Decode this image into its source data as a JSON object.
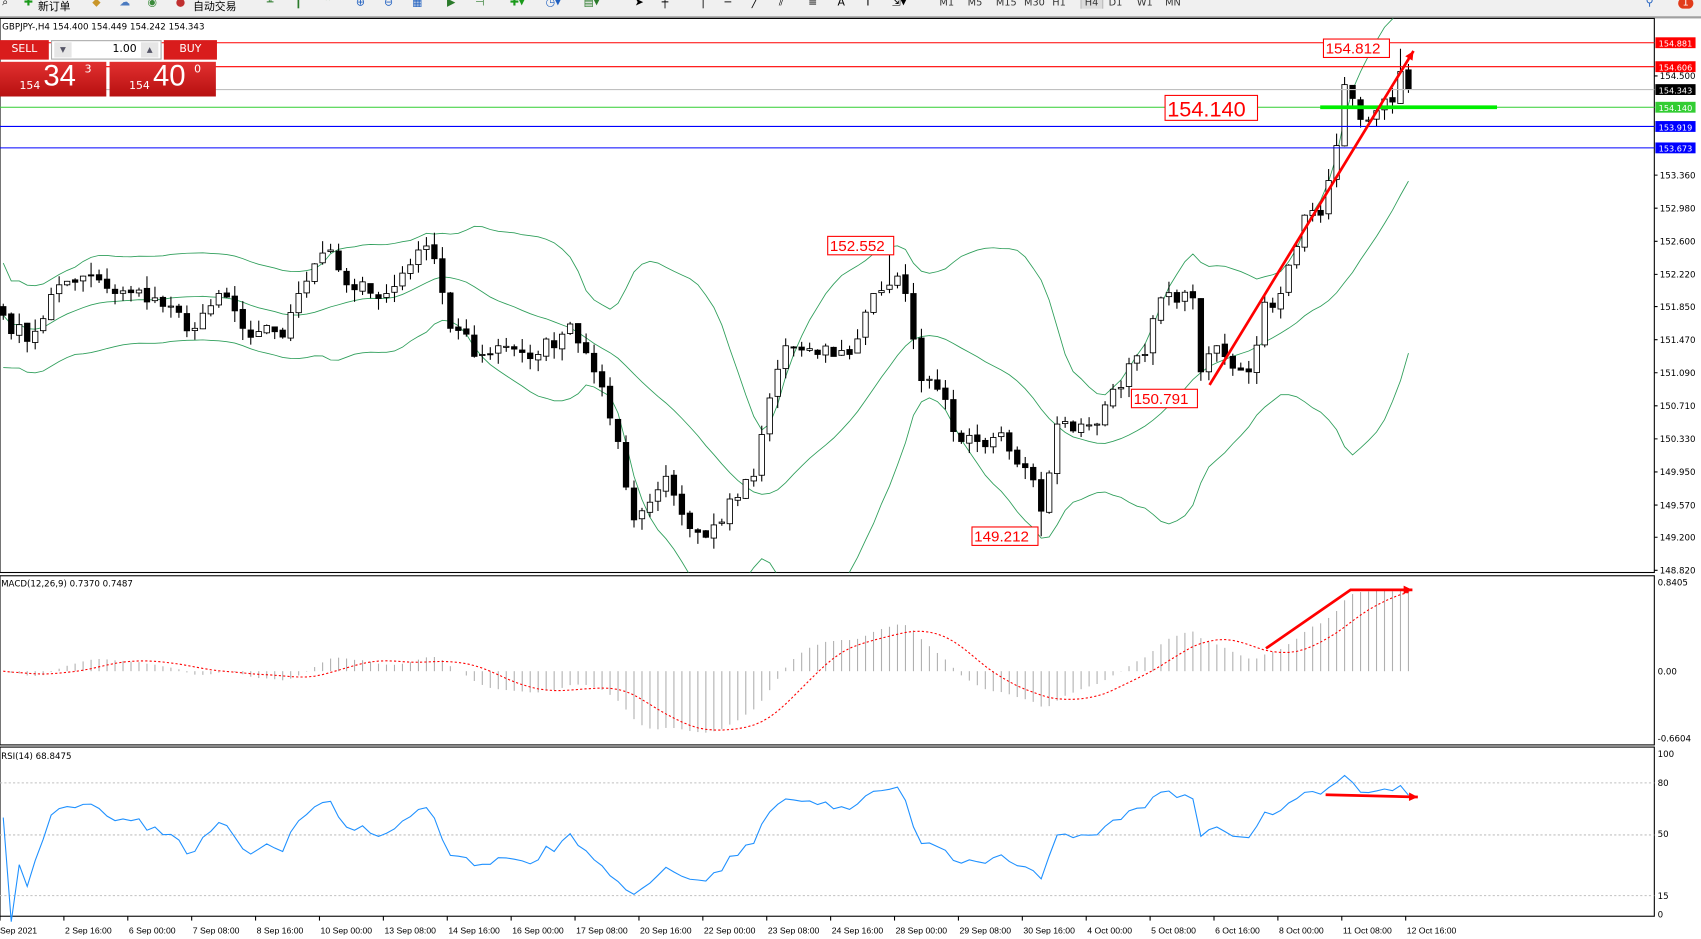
{
  "toolbar": {
    "new_order": "新订单",
    "auto_trading": "自动交易",
    "timeframes": [
      "M1",
      "M5",
      "M15",
      "M30",
      "H1",
      "H4",
      "D1",
      "W1",
      "MN"
    ],
    "active_timeframe": "H4",
    "notification_count": "1"
  },
  "chart_header": "GBPJPY-,H4  154.400 154.449 154.242 154.343",
  "trade_panel": {
    "sell_label": "SELL",
    "buy_label": "BUY",
    "lot": "1.00",
    "sell_small": "154",
    "sell_big": "34",
    "sell_pip": "3",
    "buy_small": "154",
    "buy_big": "40",
    "buy_pip": "0",
    "color": "#d91c1c"
  },
  "chart_data": {
    "type": "candlestick",
    "symbol": "GBPJPY-",
    "timeframe": "H4",
    "price_axis_ticks": [
      "154.500",
      "153.360",
      "152.980",
      "152.600",
      "152.220",
      "151.850",
      "151.470",
      "151.090",
      "150.710",
      "150.330",
      "149.950",
      "149.570",
      "149.200",
      "148.820"
    ],
    "price_range": [
      148.78,
      154.95
    ],
    "close_path_by_bar": [
      [
        0,
        151.75
      ],
      [
        3,
        151.45
      ],
      [
        7,
        152.1
      ],
      [
        10,
        152.2
      ],
      [
        14,
        152.0
      ],
      [
        19,
        151.95
      ],
      [
        24,
        151.6
      ],
      [
        27,
        152.0
      ],
      [
        30,
        151.6
      ],
      [
        35,
        151.5
      ],
      [
        37,
        152.0
      ],
      [
        41,
        152.5
      ],
      [
        43,
        152.1
      ],
      [
        48,
        152.0
      ],
      [
        52,
        152.5
      ],
      [
        54,
        152.4
      ],
      [
        56,
        151.6
      ],
      [
        60,
        151.3
      ],
      [
        62,
        151.4
      ],
      [
        67,
        151.3
      ],
      [
        71,
        151.65
      ],
      [
        74,
        151.1
      ],
      [
        77,
        150.3
      ],
      [
        79,
        149.4
      ],
      [
        83,
        149.9
      ],
      [
        86,
        149.3
      ],
      [
        88,
        149.2
      ],
      [
        94,
        149.9
      ],
      [
        96,
        150.8
      ],
      [
        98,
        151.4
      ],
      [
        102,
        151.3
      ],
      [
        106,
        151.3
      ],
      [
        109,
        152.0
      ],
      [
        112,
        152.2
      ],
      [
        113,
        152.0
      ],
      [
        115,
        151.0
      ],
      [
        117,
        150.9
      ],
      [
        120,
        150.3
      ],
      [
        122,
        150.3
      ],
      [
        125,
        150.4
      ],
      [
        128,
        150.0
      ],
      [
        130,
        149.5
      ],
      [
        132,
        150.5
      ],
      [
        135,
        150.5
      ],
      [
        137,
        150.5
      ],
      [
        139,
        150.9
      ],
      [
        143,
        151.3
      ],
      [
        145,
        151.95
      ],
      [
        147,
        151.9
      ],
      [
        149,
        151.95
      ],
      [
        150,
        151.1
      ],
      [
        152,
        151.4
      ],
      [
        156,
        151.1
      ],
      [
        158,
        151.9
      ],
      [
        160,
        152.0
      ],
      [
        163,
        152.9
      ],
      [
        165,
        152.9
      ],
      [
        167,
        153.7
      ],
      [
        168,
        154.4
      ],
      [
        170,
        154.0
      ],
      [
        172,
        154.1
      ],
      [
        174,
        154.2
      ],
      [
        175,
        154.55
      ],
      [
        176,
        154.34
      ]
    ],
    "horizontal_lines": [
      {
        "price": "154.881",
        "color": "#ff0000"
      },
      {
        "price": "154.606",
        "color": "#ff0000"
      },
      {
        "price": "154.343",
        "color": "#c0c0c0",
        "tag": "#000000"
      },
      {
        "price": "154.140",
        "color": "#32cd32",
        "tag": "#32cd32"
      },
      {
        "price": "153.919",
        "color": "#0000ff"
      },
      {
        "price": "153.673",
        "color": "#0000ff"
      }
    ],
    "annotations": [
      {
        "text": "152.552",
        "bar": 111
      },
      {
        "text": "150.791",
        "bar": 147
      },
      {
        "text": "149.212",
        "bar": 130
      },
      {
        "text": "154.812",
        "bar": 175
      },
      {
        "text": "154.140",
        "bar": 146
      }
    ],
    "bollinger": {
      "period": 20,
      "deviation": 2,
      "color": "#2e9e5a"
    },
    "macd": {
      "label": "MACD(12,26,9) 0.7370 0.7487",
      "ticks": [
        "0.8405",
        "0.00",
        "-0.6604"
      ],
      "range": [
        -0.6604,
        0.8405
      ],
      "hist_color": "#b0b0b0",
      "signal_color": "#ff0000"
    },
    "rsi": {
      "label": "RSI(14) 68.8475",
      "ticks": [
        "100",
        "80",
        "50",
        "15",
        "0"
      ],
      "levels": [
        80,
        50,
        15
      ],
      "color": "#1e90ff"
    },
    "time_labels": [
      "Sep 2021",
      "2 Sep 16:00",
      "6 Sep 00:00",
      "7 Sep 08:00",
      "8 Sep 16:00",
      "10 Sep 00:00",
      "13 Sep 08:00",
      "14 Sep 16:00",
      "16 Sep 00:00",
      "17 Sep 08:00",
      "20 Sep 16:00",
      "22 Sep 00:00",
      "23 Sep 08:00",
      "24 Sep 16:00",
      "28 Sep 00:00",
      "29 Sep 08:00",
      "30 Sep 16:00",
      "4 Oct 00:00",
      "5 Oct 08:00",
      "6 Oct 16:00",
      "8 Oct 00:00",
      "11 Oct 08:00",
      "12 Oct 16:00"
    ]
  }
}
